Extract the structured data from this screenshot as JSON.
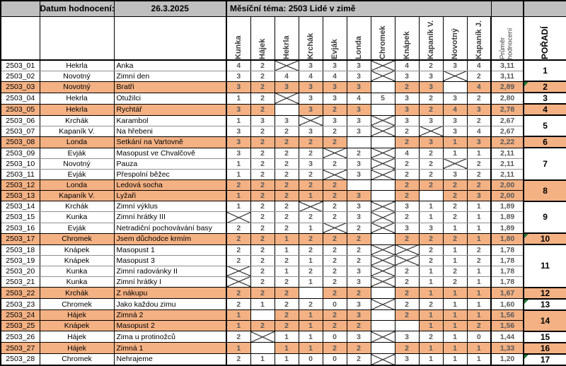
{
  "header": {
    "date_label": "Datum hodnocení:",
    "date_value": "26.3.2025",
    "theme_label": "Měsíční téma: 2503 Lidé v zimě"
  },
  "columns": {
    "voters": [
      "Kunka",
      "Hájek",
      "Hekrla",
      "Krchák",
      "Evják",
      "Londa",
      "Chromek",
      "Knápek",
      "Kapaník V.",
      "Novotný",
      "Kapaník J."
    ],
    "average_label": "Průměr hodnocení",
    "rank_label": "POŘADÍ"
  },
  "colors": {
    "header_gray": "#bfbfbf",
    "highlight_orange": "#f4b183",
    "value_text": "#595959",
    "row_gridline": "#8f8f8f",
    "flag_green": "#1e7b36"
  },
  "legend": {
    "x_mark_meaning": "crossed-out cell (no vote)"
  },
  "rows": [
    {
      "id": "2503_01",
      "author": "Hekrla",
      "title": "Anka",
      "ratings": [
        4,
        2,
        "X",
        3,
        3,
        3,
        "X",
        4,
        2,
        3,
        4
      ],
      "average": "3,11",
      "highlight": false
    },
    {
      "id": "2503_02",
      "author": "Novotný",
      "title": "Zimní den",
      "ratings": [
        3,
        2,
        4,
        4,
        4,
        3,
        "X",
        3,
        3,
        "X",
        2
      ],
      "average": "3,11",
      "highlight": false
    },
    {
      "id": "2503_03",
      "author": "Novotný",
      "title": "Bratři",
      "ratings": [
        3,
        2,
        3,
        3,
        3,
        3,
        "X",
        2,
        3,
        "X",
        4
      ],
      "average": "2,89",
      "highlight": true
    },
    {
      "id": "2503_04",
      "author": "Hekrla",
      "title": "Otužilci",
      "ratings": [
        1,
        2,
        "X",
        3,
        3,
        4,
        5,
        3,
        2,
        3,
        2
      ],
      "average": "2,80",
      "highlight": false
    },
    {
      "id": "2503_05",
      "author": "Hekrla",
      "title": "Rychtář",
      "ratings": [
        3,
        2,
        "X",
        3,
        2,
        3,
        "X",
        3,
        2,
        4,
        3
      ],
      "average": "2,78",
      "highlight": true
    },
    {
      "id": "2503_06",
      "author": "Krchák",
      "title": "Karambol",
      "ratings": [
        1,
        3,
        3,
        "X",
        3,
        3,
        "X",
        3,
        3,
        3,
        2
      ],
      "average": "2,67",
      "highlight": false
    },
    {
      "id": "2503_07",
      "author": "Kapaník V.",
      "title": "Na hřebeni",
      "ratings": [
        3,
        2,
        2,
        3,
        2,
        3,
        "X",
        2,
        "X",
        3,
        4
      ],
      "average": "2,67",
      "highlight": false
    },
    {
      "id": "2503_08",
      "author": "Londa",
      "title": "Setkání na Vartovně",
      "ratings": [
        3,
        2,
        2,
        2,
        2,
        "X",
        "X",
        2,
        3,
        1,
        3
      ],
      "average": "2,22",
      "highlight": true
    },
    {
      "id": "2503_09",
      "author": "Evják",
      "title": "Masopust ve Chvalčově",
      "ratings": [
        3,
        2,
        2,
        2,
        "X",
        2,
        "X",
        4,
        2,
        1,
        1
      ],
      "average": "2,11",
      "highlight": false
    },
    {
      "id": "2503_10",
      "author": "Novotný",
      "title": "Pauza",
      "ratings": [
        1,
        2,
        2,
        3,
        2,
        3,
        "X",
        2,
        2,
        "X",
        2
      ],
      "average": "2,11",
      "highlight": false
    },
    {
      "id": "2503_11",
      "author": "Evják",
      "title": "Přespolní běžec",
      "ratings": [
        1,
        2,
        2,
        2,
        "X",
        3,
        "X",
        2,
        2,
        3,
        2
      ],
      "average": "2,11",
      "highlight": false
    },
    {
      "id": "2503_12",
      "author": "Londa",
      "title": "Ledová socha",
      "ratings": [
        2,
        2,
        2,
        2,
        2,
        "X",
        "X",
        2,
        2,
        2,
        2
      ],
      "average": "2,00",
      "highlight": true
    },
    {
      "id": "2503_13",
      "author": "Kapaník V.",
      "title": "Lyžaři",
      "ratings": [
        1,
        2,
        2,
        1,
        2,
        3,
        "X",
        2,
        "X",
        2,
        3
      ],
      "average": "2,00",
      "highlight": true
    },
    {
      "id": "2503_14",
      "author": "Krchák",
      "title": "Zimní výklus",
      "ratings": [
        1,
        2,
        2,
        "X",
        2,
        3,
        "X",
        3,
        1,
        2,
        1
      ],
      "average": "1,89",
      "highlight": false
    },
    {
      "id": "2503_15",
      "author": "Kunka",
      "title": "Zimní hrátky III",
      "ratings": [
        "X",
        2,
        2,
        2,
        2,
        3,
        "X",
        2,
        1,
        2,
        1
      ],
      "average": "1,89",
      "highlight": false
    },
    {
      "id": "2503_16",
      "author": "Evják",
      "title": "Netradiční pochovávání basy",
      "ratings": [
        2,
        2,
        2,
        1,
        "X",
        2,
        "X",
        3,
        3,
        1,
        1
      ],
      "average": "1,89",
      "highlight": false
    },
    {
      "id": "2503_17",
      "author": "Chromek",
      "title": "Jsem důchodce krmím",
      "ratings": [
        2,
        2,
        1,
        2,
        2,
        2,
        "X",
        2,
        2,
        2,
        1
      ],
      "average": "1,80",
      "highlight": true
    },
    {
      "id": "2503_18",
      "author": "Knápek",
      "title": "Masopust 1",
      "ratings": [
        2,
        2,
        1,
        2,
        2,
        2,
        "X",
        "X",
        2,
        1,
        2
      ],
      "average": "1,78",
      "highlight": false
    },
    {
      "id": "2503_19",
      "author": "Knápek",
      "title": "Masopust 3",
      "ratings": [
        2,
        2,
        2,
        1,
        2,
        2,
        "X",
        "X",
        2,
        1,
        2
      ],
      "average": "1,78",
      "highlight": false
    },
    {
      "id": "2503_20",
      "author": "Kunka",
      "title": "Zimní radovánky II",
      "ratings": [
        "X",
        2,
        1,
        2,
        2,
        3,
        "X",
        2,
        1,
        2,
        1
      ],
      "average": "1,78",
      "highlight": false
    },
    {
      "id": "2503_21",
      "author": "Kunka",
      "title": "Zimní hrátky I",
      "ratings": [
        "X",
        2,
        2,
        1,
        2,
        3,
        "X",
        2,
        1,
        2,
        1
      ],
      "average": "1,78",
      "highlight": false
    },
    {
      "id": "2503_22",
      "author": "Krchák",
      "title": "Z nákupu",
      "ratings": [
        2,
        2,
        2,
        "X",
        2,
        2,
        "X",
        2,
        1,
        1,
        1
      ],
      "average": "1,67",
      "highlight": true
    },
    {
      "id": "2503_23",
      "author": "Chromek",
      "title": "Jako každou zimu",
      "ratings": [
        2,
        1,
        2,
        2,
        0,
        3,
        "X",
        2,
        2,
        1,
        1
      ],
      "average": "1,60",
      "highlight": false
    },
    {
      "id": "2503_24",
      "author": "Hájek",
      "title": "Zimná 2",
      "ratings": [
        1,
        "X",
        2,
        1,
        2,
        3,
        "X",
        2,
        1,
        1,
        1
      ],
      "average": "1,56",
      "highlight": true
    },
    {
      "id": "2503_25",
      "author": "Knápek",
      "title": "Masopust 2",
      "ratings": [
        1,
        2,
        2,
        1,
        2,
        2,
        "X",
        "X",
        1,
        1,
        2
      ],
      "average": "1,56",
      "highlight": true
    },
    {
      "id": "2503_26",
      "author": "Hájek",
      "title": "Zima u protinožců",
      "ratings": [
        2,
        "X",
        1,
        1,
        0,
        3,
        "X",
        3,
        2,
        1,
        0
      ],
      "average": "1,44",
      "highlight": false
    },
    {
      "id": "2503_27",
      "author": "Hájek",
      "title": "Zimná 1",
      "ratings": [
        1,
        "X",
        1,
        1,
        2,
        2,
        "X",
        2,
        1,
        1,
        1
      ],
      "average": "1,33",
      "highlight": true
    },
    {
      "id": "2503_28",
      "author": "Chromek",
      "title": "Nehrajeme",
      "ratings": [
        2,
        1,
        1,
        0,
        0,
        2,
        "X",
        3,
        1,
        1,
        1
      ],
      "average": "1,20",
      "highlight": false
    }
  ],
  "ranks": [
    {
      "value": "1",
      "span": 2,
      "highlight": false,
      "flag": false
    },
    {
      "value": "2",
      "span": 1,
      "highlight": true,
      "flag": true
    },
    {
      "value": "3",
      "span": 1,
      "highlight": false,
      "flag": false
    },
    {
      "value": "4",
      "span": 1,
      "highlight": true,
      "flag": false
    },
    {
      "value": "5",
      "span": 2,
      "highlight": false,
      "flag": false
    },
    {
      "value": "6",
      "span": 1,
      "highlight": true,
      "flag": false
    },
    {
      "value": "7",
      "span": 3,
      "highlight": false,
      "flag": false
    },
    {
      "value": "8",
      "span": 2,
      "highlight": true,
      "flag": false
    },
    {
      "value": "9",
      "span": 3,
      "highlight": false,
      "flag": false
    },
    {
      "value": "10",
      "span": 1,
      "highlight": true,
      "flag": true
    },
    {
      "value": "11",
      "span": 4,
      "highlight": false,
      "flag": false
    },
    {
      "value": "12",
      "span": 1,
      "highlight": true,
      "flag": false
    },
    {
      "value": "13",
      "span": 1,
      "highlight": false,
      "flag": true
    },
    {
      "value": "14",
      "span": 2,
      "highlight": true,
      "flag": false
    },
    {
      "value": "15",
      "span": 1,
      "highlight": false,
      "flag": false
    },
    {
      "value": "16",
      "span": 1,
      "highlight": true,
      "flag": false
    },
    {
      "value": "17",
      "span": 1,
      "highlight": false,
      "flag": true
    }
  ]
}
